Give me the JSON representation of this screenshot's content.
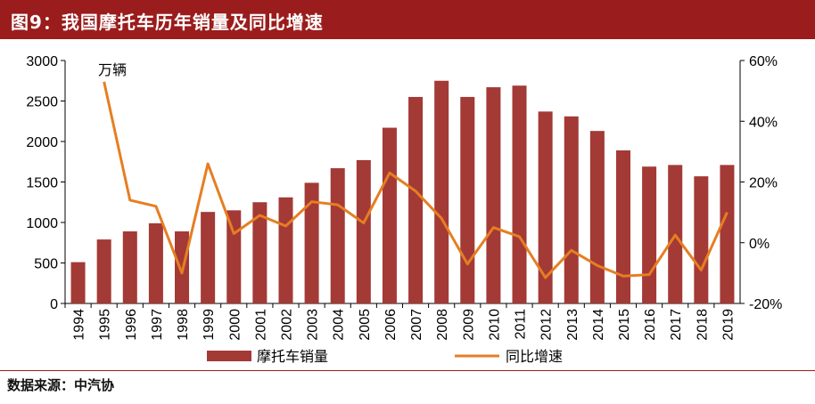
{
  "title": "图9：我国摩托车历年销量及同比增速",
  "source": {
    "label": "数据来源：",
    "value": "中汽协"
  },
  "colors": {
    "bar": "#a33a36",
    "line": "#e67e22",
    "header": "#9b1c1c"
  },
  "chart_data": {
    "type": "bar",
    "categories": [
      "1994",
      "1995",
      "1996",
      "1997",
      "1998",
      "1999",
      "2000",
      "2001",
      "2002",
      "2003",
      "2004",
      "2005",
      "2006",
      "2007",
      "2008",
      "2009",
      "2010",
      "2011",
      "2012",
      "2013",
      "2014",
      "2015",
      "2016",
      "2017",
      "2018",
      "2019"
    ],
    "series": [
      {
        "name": "摩托车销量",
        "type": "bar",
        "axis": "left",
        "values": [
          510,
          790,
          890,
          990,
          890,
          1130,
          1150,
          1250,
          1310,
          1490,
          1670,
          1770,
          2170,
          2550,
          2750,
          2550,
          2670,
          2690,
          2370,
          2310,
          2130,
          1890,
          1690,
          1710,
          1570,
          1710
        ]
      },
      {
        "name": "同比增速",
        "type": "line",
        "axis": "right",
        "values": [
          null,
          53,
          14,
          12,
          -10,
          26,
          3,
          9,
          5.5,
          13.5,
          12.5,
          6.5,
          23,
          17,
          8,
          -7,
          5,
          2,
          -11.5,
          -2.5,
          -7.5,
          -11,
          -10.5,
          2.5,
          -9,
          10
        ]
      }
    ],
    "y_left": {
      "min": 0,
      "max": 3000,
      "ticks": [
        0,
        500,
        1000,
        1500,
        2000,
        2500,
        3000
      ]
    },
    "y_right": {
      "min": -20,
      "max": 60,
      "ticks": [
        -20,
        0,
        20,
        40,
        60
      ],
      "tick_labels": [
        "-20%",
        "0%",
        "20%",
        "40%",
        "60%"
      ]
    },
    "annotation": "万辆",
    "legend_position": "bottom"
  }
}
